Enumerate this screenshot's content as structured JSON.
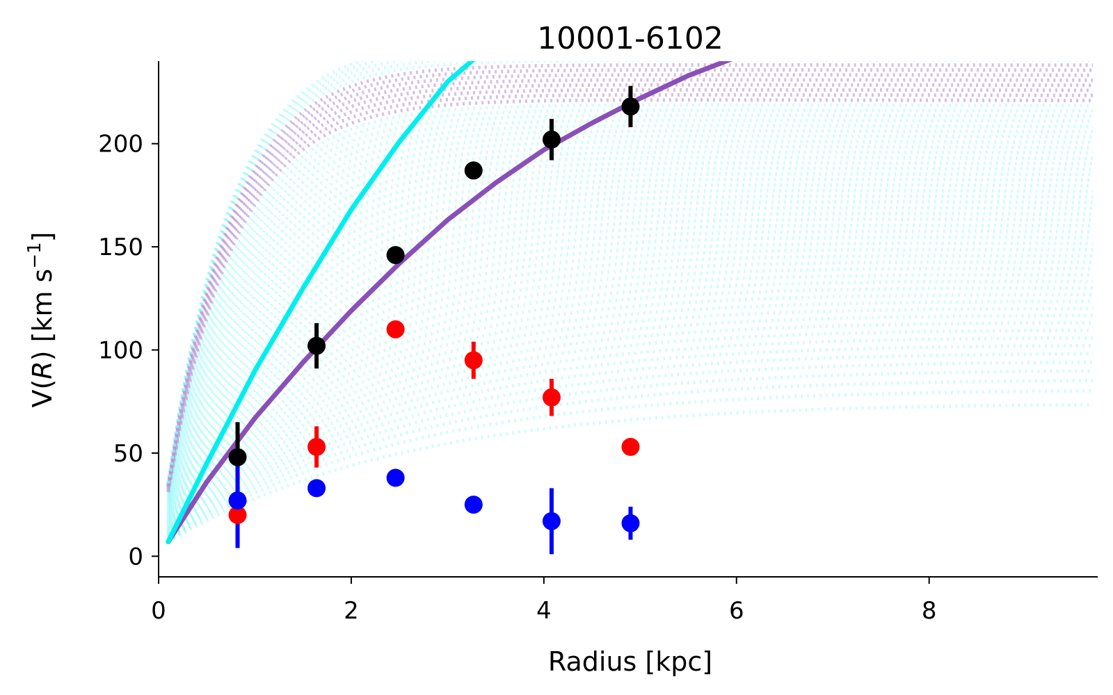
{
  "chart_data": {
    "type": "scatter",
    "title": "10001-6102",
    "xlabel": "Radius [kpc]",
    "ylabel": {
      "prefix": "V(",
      "var": "R",
      "suffix": ") [km s",
      "sup": "−1",
      "close": "]"
    },
    "xlim": [
      0,
      9.75
    ],
    "ylim": [
      -10,
      240
    ],
    "xticks": [
      0,
      2,
      4,
      6,
      8
    ],
    "yticks": [
      0,
      50,
      100,
      150,
      200
    ],
    "grid": false,
    "legend": "none",
    "colors": {
      "total": "#000000",
      "component_red": "#ff0000",
      "component_blue": "#0000ff",
      "best_fit": "#8a4fb8",
      "model_cyan": "#00eeee",
      "samples_cyan": "#7ff5f5",
      "samples_purple": "#b38ad0"
    },
    "series": [
      {
        "color": "#000000",
        "x": [
          0.82,
          1.64,
          2.46,
          3.27,
          4.08,
          4.9
        ],
        "y": [
          48,
          102,
          146,
          187,
          202,
          218
        ],
        "err": [
          17,
          11,
          3,
          3,
          10,
          10
        ]
      },
      {
        "color": "#ff0000",
        "x": [
          0.82,
          1.64,
          2.46,
          3.27,
          4.08,
          4.9
        ],
        "y": [
          20,
          53,
          110,
          95,
          77,
          53
        ],
        "err": [
          14,
          10,
          3,
          9,
          9,
          4
        ]
      },
      {
        "color": "#0000ff",
        "x": [
          0.82,
          1.64,
          2.46,
          3.27,
          4.08,
          4.9
        ],
        "y": [
          27,
          33,
          38,
          25,
          17,
          16
        ],
        "err": [
          23,
          3,
          3,
          3,
          16,
          8
        ]
      }
    ],
    "curves": [
      {
        "color": "#8a4fb8",
        "style": "solid",
        "x": [
          0.1,
          0.5,
          1.0,
          1.5,
          2.0,
          2.5,
          3.0,
          3.5,
          4.0,
          4.5,
          5.0,
          5.5,
          6.0
        ],
        "y": [
          7,
          36,
          67,
          94,
          119,
          142,
          163,
          181,
          197,
          210,
          222,
          233,
          242
        ]
      },
      {
        "color": "#00eeee",
        "style": "solid",
        "x": [
          0.1,
          0.5,
          1.0,
          1.5,
          2.0,
          2.5,
          3.0,
          3.3
        ],
        "y": [
          7,
          45,
          90,
          130,
          168,
          201,
          230,
          242
        ]
      }
    ]
  }
}
